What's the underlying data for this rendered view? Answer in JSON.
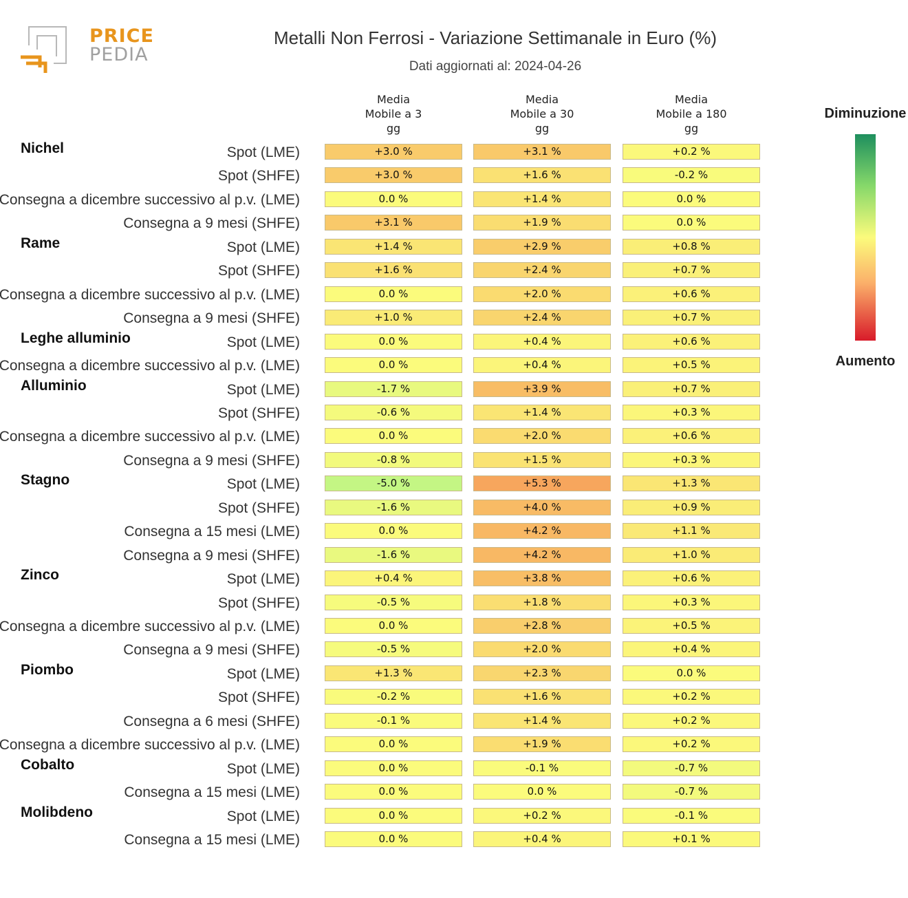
{
  "logo": {
    "line1": "PRICE",
    "line2": "PEDIA"
  },
  "title": "Metalli Non Ferrosi - Variazione Settimanale in Euro (%)",
  "subtitle": "Dati aggiornati al: 2024-04-26",
  "legend": {
    "top": "Diminuzione",
    "bottom": "Aumento"
  },
  "colors": {
    "green": "#1e8f5e",
    "yellow": "#fbfb7c",
    "orange": "#f7a35c",
    "red": "#d81b2a"
  },
  "chart_data": {
    "type": "heatmap",
    "title": "Metalli Non Ferrosi - Variazione Settimanale in Euro (%)",
    "columns": [
      "Media\nMobile a 3\ngg",
      "Media\nMobile a 30\ngg",
      "Media\nMobile a 180\ngg"
    ],
    "groups": [
      {
        "name": "Nichel",
        "rows": [
          {
            "label": "Spot (LME)",
            "values": [
              3.0,
              3.1,
              0.2
            ]
          },
          {
            "label": "Spot (SHFE)",
            "values": [
              3.0,
              1.6,
              -0.2
            ]
          },
          {
            "label": "Consegna a dicembre successivo al p.v. (LME)",
            "values": [
              0.0,
              1.4,
              0.0
            ]
          },
          {
            "label": "Consegna a 9 mesi (SHFE)",
            "values": [
              3.1,
              1.9,
              0.0
            ]
          }
        ]
      },
      {
        "name": "Rame",
        "rows": [
          {
            "label": "Spot (LME)",
            "values": [
              1.4,
              2.9,
              0.8
            ]
          },
          {
            "label": "Spot (SHFE)",
            "values": [
              1.6,
              2.4,
              0.7
            ]
          },
          {
            "label": "Consegna a dicembre successivo al p.v. (LME)",
            "values": [
              0.0,
              2.0,
              0.6
            ]
          },
          {
            "label": "Consegna a 9 mesi (SHFE)",
            "values": [
              1.0,
              2.4,
              0.7
            ]
          }
        ]
      },
      {
        "name": "Leghe alluminio",
        "rows": [
          {
            "label": "Spot (LME)",
            "values": [
              0.0,
              0.4,
              0.6
            ]
          },
          {
            "label": "Consegna a dicembre successivo al p.v. (LME)",
            "values": [
              0.0,
              0.4,
              0.5
            ]
          }
        ]
      },
      {
        "name": "Alluminio",
        "rows": [
          {
            "label": "Spot (LME)",
            "values": [
              -1.7,
              3.9,
              0.7
            ]
          },
          {
            "label": "Spot (SHFE)",
            "values": [
              -0.6,
              1.4,
              0.3
            ]
          },
          {
            "label": "Consegna a dicembre successivo al p.v. (LME)",
            "values": [
              0.0,
              2.0,
              0.6
            ]
          },
          {
            "label": "Consegna a 9 mesi (SHFE)",
            "values": [
              -0.8,
              1.5,
              0.3
            ]
          }
        ]
      },
      {
        "name": "Stagno",
        "rows": [
          {
            "label": "Spot (LME)",
            "values": [
              -5.0,
              5.3,
              1.3
            ]
          },
          {
            "label": "Spot (SHFE)",
            "values": [
              -1.6,
              4.0,
              0.9
            ]
          },
          {
            "label": "Consegna a 15 mesi (LME)",
            "values": [
              0.0,
              4.2,
              1.1
            ]
          },
          {
            "label": "Consegna a 9 mesi (SHFE)",
            "values": [
              -1.6,
              4.2,
              1.0
            ]
          }
        ]
      },
      {
        "name": "Zinco",
        "rows": [
          {
            "label": "Spot (LME)",
            "values": [
              0.4,
              3.8,
              0.6
            ]
          },
          {
            "label": "Spot (SHFE)",
            "values": [
              -0.5,
              1.8,
              0.3
            ]
          },
          {
            "label": "Consegna a dicembre successivo al p.v. (LME)",
            "values": [
              0.0,
              2.8,
              0.5
            ]
          },
          {
            "label": "Consegna a 9 mesi (SHFE)",
            "values": [
              -0.5,
              2.0,
              0.4
            ]
          }
        ]
      },
      {
        "name": "Piombo",
        "rows": [
          {
            "label": "Spot (LME)",
            "values": [
              1.3,
              2.3,
              0.0
            ]
          },
          {
            "label": "Spot (SHFE)",
            "values": [
              -0.2,
              1.6,
              0.2
            ]
          },
          {
            "label": "Consegna a 6 mesi (SHFE)",
            "values": [
              -0.1,
              1.4,
              0.2
            ]
          },
          {
            "label": "Consegna a dicembre successivo al p.v. (LME)",
            "values": [
              0.0,
              1.9,
              0.2
            ]
          }
        ]
      },
      {
        "name": "Cobalto",
        "rows": [
          {
            "label": "Spot (LME)",
            "values": [
              0.0,
              -0.1,
              -0.7
            ]
          },
          {
            "label": "Consegna a 15 mesi (LME)",
            "values": [
              0.0,
              0.0,
              -0.7
            ]
          }
        ]
      },
      {
        "name": "Molibdeno",
        "rows": [
          {
            "label": "Spot (LME)",
            "values": [
              0.0,
              0.2,
              -0.1
            ]
          },
          {
            "label": "Consegna a 15 mesi (LME)",
            "values": [
              0.0,
              0.4,
              0.1
            ]
          }
        ]
      }
    ],
    "legend": {
      "top": "Diminuzione",
      "bottom": "Aumento"
    },
    "value_format": "signed, 1 decimal, %"
  }
}
